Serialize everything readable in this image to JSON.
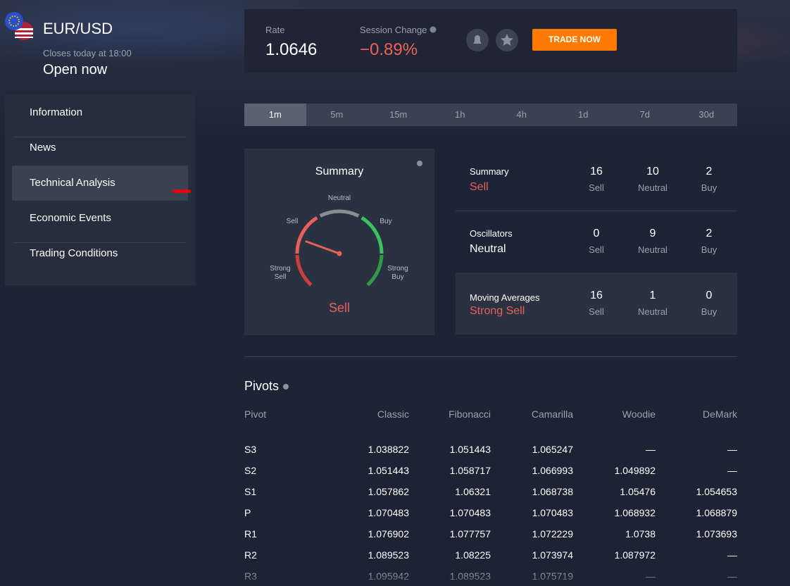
{
  "instrument": {
    "pair": "EUR/USD",
    "closes": "Closes today at 18:00",
    "status": "Open now"
  },
  "nav": {
    "items": [
      "Information",
      "News",
      "Technical Analysis",
      "Economic Events",
      "Trading Conditions"
    ],
    "active": 2
  },
  "quote": {
    "rate_label": "Rate",
    "rate": "1.0646",
    "change_label": "Session Change",
    "change": "−0.89%",
    "button": "TRADE NOW"
  },
  "timeframes": {
    "items": [
      "1m",
      "5m",
      "15m",
      "1h",
      "4h",
      "1d",
      "7d",
      "30d"
    ],
    "active": 0
  },
  "gauge": {
    "title": "Summary",
    "labels": {
      "strong_sell": "Strong Sell",
      "sell": "Sell",
      "neutral": "Neutral",
      "buy": "Buy",
      "strong_buy": "Strong Buy"
    },
    "verdict": "Sell"
  },
  "summary_rows": [
    {
      "name": "Summary",
      "verdict": "Sell",
      "verdict_color": "#e8605a",
      "counts": [
        {
          "value": 16,
          "label": "Sell"
        },
        {
          "value": 10,
          "label": "Neutral"
        },
        {
          "value": 2,
          "label": "Buy"
        }
      ]
    },
    {
      "name": "Oscillators",
      "verdict": "Neutral",
      "verdict_color": "#ffffff",
      "counts": [
        {
          "value": 0,
          "label": "Sell"
        },
        {
          "value": 9,
          "label": "Neutral"
        },
        {
          "value": 2,
          "label": "Buy"
        }
      ]
    },
    {
      "name": "Moving Averages",
      "verdict": "Strong Sell",
      "verdict_color": "#e8605a",
      "counts": [
        {
          "value": 16,
          "label": "Sell"
        },
        {
          "value": 1,
          "label": "Neutral"
        },
        {
          "value": 0,
          "label": "Buy"
        }
      ]
    }
  ],
  "pivots": {
    "title": "Pivots",
    "columns": [
      "Pivot",
      "Classic",
      "Fibonacci",
      "Camarilla",
      "Woodie",
      "DeMark"
    ],
    "rows": [
      [
        "S3",
        1.038822,
        1.051443,
        1.065247,
        "—",
        "—"
      ],
      [
        "S2",
        1.051443,
        1.058717,
        1.066993,
        1.049892,
        "—"
      ],
      [
        "S1",
        1.057862,
        1.06321,
        1.068738,
        1.05476,
        1.054653
      ],
      [
        "P",
        1.070483,
        1.070483,
        1.070483,
        1.068932,
        1.068879
      ],
      [
        "R1",
        1.076902,
        1.077757,
        1.072229,
        1.0738,
        1.073693
      ],
      [
        "R2",
        1.089523,
        1.08225,
        1.073974,
        1.087972,
        "—"
      ],
      [
        "R3",
        1.095942,
        1.089523,
        1.075719,
        "—",
        "—"
      ]
    ]
  }
}
